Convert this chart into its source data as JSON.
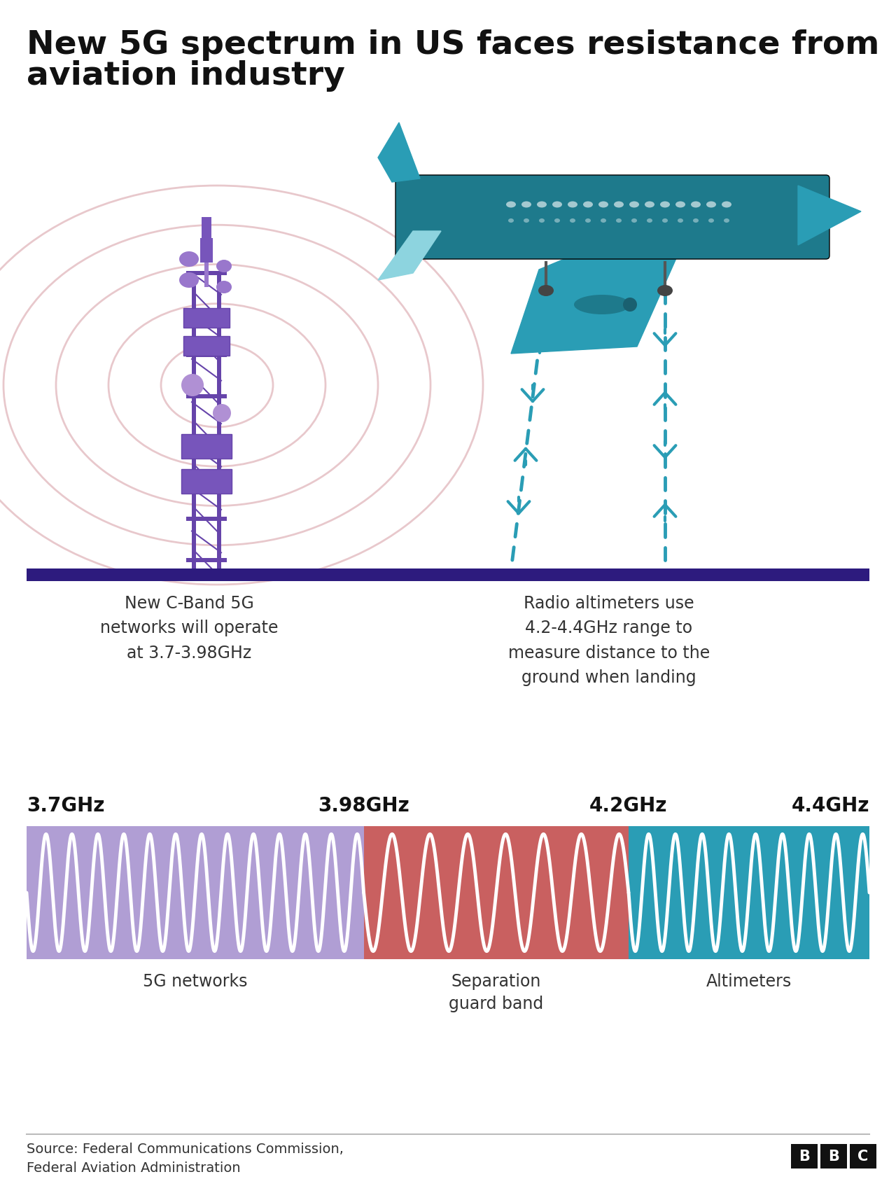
{
  "title_line1": "New 5G spectrum in US faces resistance from",
  "title_line2": "aviation industry",
  "title_fontsize": 34,
  "bg_color": "#ffffff",
  "signal_ring_color": "#e8c8cc",
  "ground_bar_color": "#2d1b7e",
  "plane_body_color": "#2a9db5",
  "plane_dark_color": "#1e7a8c",
  "plane_light_color": "#6ecad8",
  "plane_wing_color": "#8dd4df",
  "altimeter_color": "#2a9db5",
  "band_5g_color": "#b09ed4",
  "band_guard_color": "#c96060",
  "band_alt_color": "#2a9db5",
  "wave_color": "#ffffff",
  "tower_main_color": "#6644aa",
  "tower_light_color": "#9977cc",
  "tower_box_color": "#7755bb",
  "freq_labels": [
    "3.7GHz",
    "3.98GHz",
    "4.2GHz",
    "4.4GHz"
  ],
  "band_labels_line1": [
    "5G networks",
    "Separation",
    "Altimeters"
  ],
  "band_labels_line2": [
    "",
    "guard band",
    ""
  ],
  "tower_caption": "New C-Band 5G\nnetworks will operate\nat 3.7-3.98GHz",
  "altimeter_caption": "Radio altimeters use\n4.2-4.4GHz range to\nmeasure distance to the\nground when landing",
  "source_text": "Source: Federal Communications Commission,\nFederal Aviation Administration"
}
